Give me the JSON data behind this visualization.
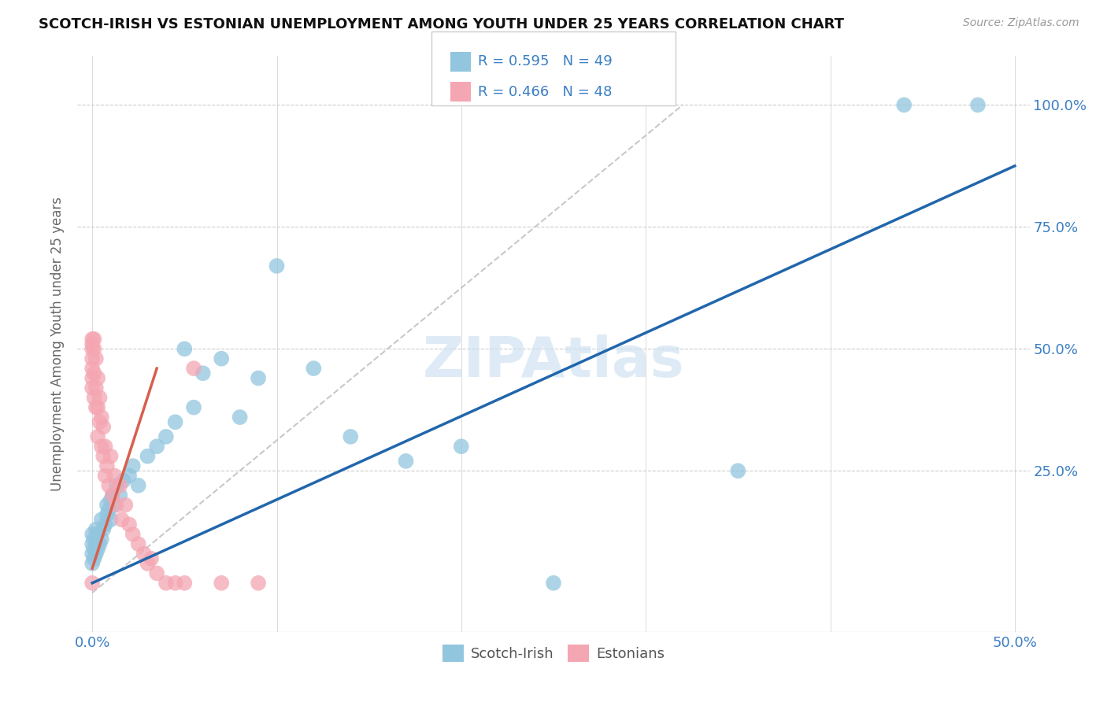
{
  "title": "SCOTCH-IRISH VS ESTONIAN UNEMPLOYMENT AMONG YOUTH UNDER 25 YEARS CORRELATION CHART",
  "source": "Source: ZipAtlas.com",
  "ylabel": "Unemployment Among Youth under 25 years",
  "R1": 0.595,
  "N1": 49,
  "R2": 0.466,
  "N2": 48,
  "color_blue": "#92c5de",
  "color_pink": "#f4a6b2",
  "color_blue_line": "#2166ac",
  "color_pink_line": "#d6604d",
  "color_dashed": "#bbbbbb",
  "watermark": "ZIPAtlas",
  "watermark_color": "#c8dff0",
  "background_color": "#ffffff",
  "xlim": [
    -0.008,
    0.508
  ],
  "ylim": [
    -0.08,
    1.1
  ],
  "blue_line_x": [
    0.0,
    0.5
  ],
  "blue_line_y": [
    0.02,
    0.875
  ],
  "pink_line_x": [
    0.0,
    0.035
  ],
  "pink_line_y": [
    0.05,
    0.46
  ],
  "diag_line_x": [
    0.0,
    0.32
  ],
  "diag_line_y": [
    0.0,
    1.0
  ],
  "si_x": [
    0.0,
    0.0,
    0.0,
    0.0,
    0.001,
    0.001,
    0.001,
    0.002,
    0.002,
    0.002,
    0.003,
    0.003,
    0.004,
    0.005,
    0.005,
    0.006,
    0.007,
    0.008,
    0.008,
    0.009,
    0.01,
    0.01,
    0.011,
    0.012,
    0.013,
    0.015,
    0.017,
    0.02,
    0.022,
    0.025,
    0.03,
    0.035,
    0.04,
    0.045,
    0.05,
    0.055,
    0.06,
    0.07,
    0.08,
    0.09,
    0.1,
    0.12,
    0.14,
    0.17,
    0.2,
    0.25,
    0.35,
    0.44,
    0.48
  ],
  "si_y": [
    0.06,
    0.08,
    0.1,
    0.12,
    0.07,
    0.09,
    0.11,
    0.08,
    0.1,
    0.13,
    0.09,
    0.12,
    0.1,
    0.11,
    0.15,
    0.13,
    0.14,
    0.16,
    0.18,
    0.17,
    0.15,
    0.19,
    0.2,
    0.18,
    0.22,
    0.2,
    0.23,
    0.24,
    0.26,
    0.22,
    0.28,
    0.3,
    0.32,
    0.35,
    0.5,
    0.38,
    0.45,
    0.48,
    0.36,
    0.44,
    0.67,
    0.46,
    0.32,
    0.27,
    0.3,
    0.02,
    0.25,
    1.0,
    1.0
  ],
  "est_x": [
    0.0,
    0.0,
    0.0,
    0.0,
    0.0,
    0.0,
    0.0,
    0.0,
    0.001,
    0.001,
    0.001,
    0.001,
    0.002,
    0.002,
    0.002,
    0.003,
    0.003,
    0.003,
    0.004,
    0.004,
    0.005,
    0.005,
    0.006,
    0.006,
    0.007,
    0.007,
    0.008,
    0.009,
    0.01,
    0.011,
    0.012,
    0.013,
    0.015,
    0.016,
    0.018,
    0.02,
    0.022,
    0.025,
    0.028,
    0.03,
    0.032,
    0.035,
    0.04,
    0.045,
    0.05,
    0.055,
    0.07,
    0.09
  ],
  "est_y": [
    0.51,
    0.52,
    0.5,
    0.48,
    0.46,
    0.44,
    0.42,
    0.02,
    0.52,
    0.5,
    0.45,
    0.4,
    0.48,
    0.42,
    0.38,
    0.44,
    0.38,
    0.32,
    0.4,
    0.35,
    0.36,
    0.3,
    0.34,
    0.28,
    0.3,
    0.24,
    0.26,
    0.22,
    0.28,
    0.2,
    0.24,
    0.18,
    0.22,
    0.15,
    0.18,
    0.14,
    0.12,
    0.1,
    0.08,
    0.06,
    0.07,
    0.04,
    0.02,
    0.02,
    0.02,
    0.46,
    0.02,
    0.02
  ]
}
